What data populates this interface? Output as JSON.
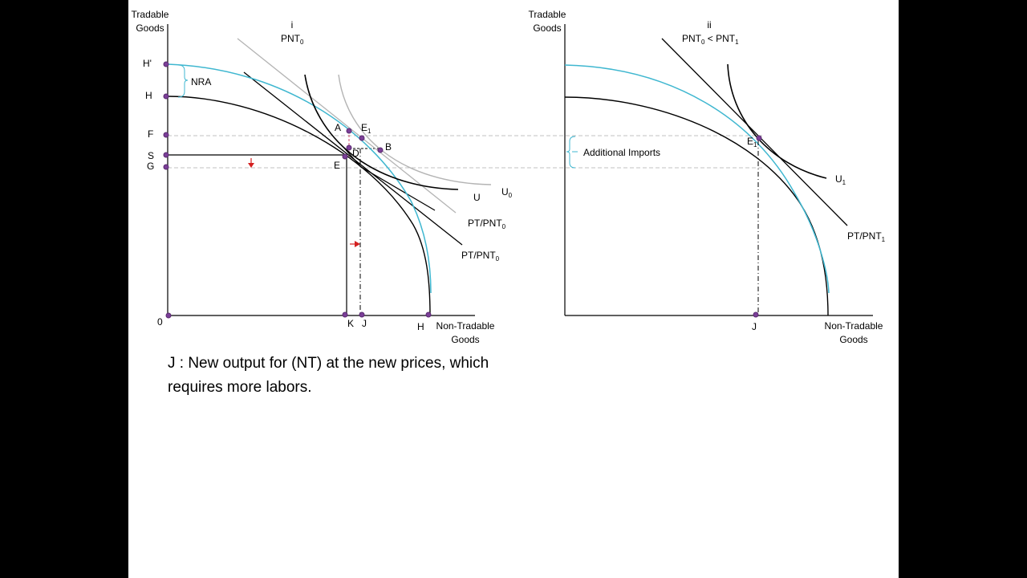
{
  "colors": {
    "background": "#000000",
    "slide": "#ffffff",
    "curve": "#000000",
    "ppf_shifted": "#3fb7d0",
    "grey_curve": "#b4b4b4",
    "guide_dashed": "#c0c0c0",
    "dot": "#7b3f98",
    "arrow": "#d42020",
    "dashed_pink": "#d04a6a"
  },
  "panel_i": {
    "title": "i",
    "subtitle_main": "PNT",
    "subtitle_sub": "0",
    "y_axis_line1": "Tradable",
    "y_axis_line2": "Goods",
    "x_axis_line1": "Non-Tradable",
    "x_axis_line2": "Goods",
    "origin": "0",
    "labels": {
      "h_prime": "H'",
      "h": "H",
      "f": "F",
      "s": "S",
      "g": "G",
      "nra": "NRA",
      "a": "A",
      "e1": "E",
      "e1_sub": "1",
      "b": "B",
      "d": "D",
      "e": "E",
      "k": "K",
      "j": "J",
      "h_x": "H",
      "u": "U",
      "u0": "U",
      "u0_sub": "0",
      "pt_pnt_a": "PT/PNT",
      "pt_pnt_a_sub": "0",
      "pt_pnt_b": "PT/PNT",
      "pt_pnt_b_sub": "0"
    }
  },
  "panel_ii": {
    "title": "ii",
    "subtitle_a": "PNT",
    "subtitle_a_sub": "0",
    "subtitle_lt": " < PNT",
    "subtitle_b_sub": "1",
    "y_axis_line1": "Tradable",
    "y_axis_line2": "Goods",
    "x_axis_line1": "Non-Tradable",
    "x_axis_line2": "Goods",
    "labels": {
      "additional_imports": "Additional Imports",
      "e1": "E",
      "e1_sub": "1",
      "u1": "U",
      "u1_sub": "1",
      "pt_pnt1": "PT/PNT",
      "pt_pnt1_sub": "1",
      "j": "J"
    }
  },
  "caption": {
    "line1": "J : New output for (NT) at the new prices, which",
    "line2": "requires more labors."
  }
}
